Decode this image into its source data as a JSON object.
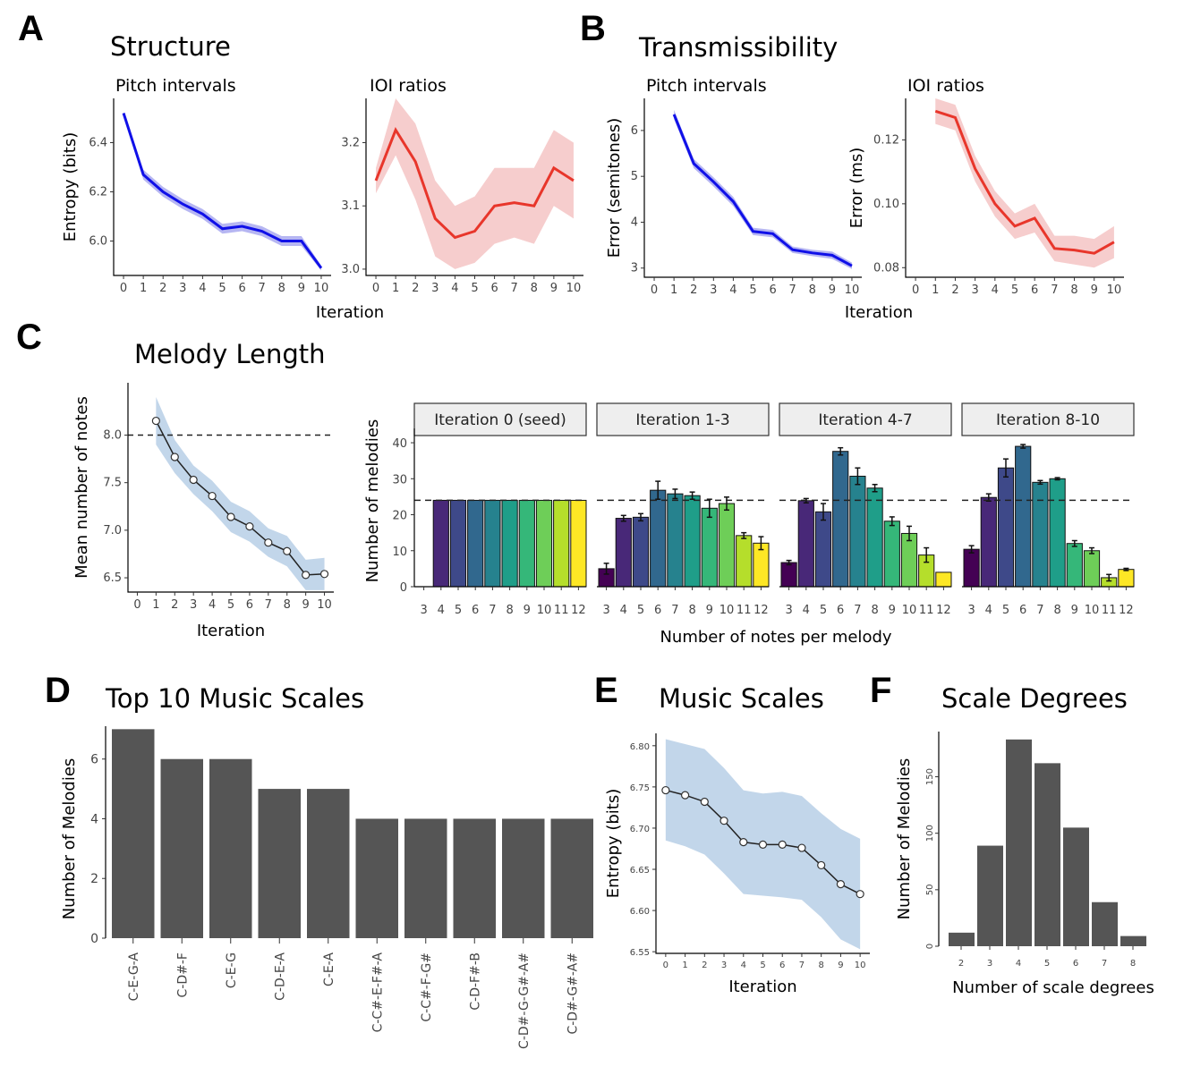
{
  "panels": {
    "A": {
      "label": "A",
      "title": "Structure"
    },
    "B": {
      "label": "B",
      "title": "Transmissibility"
    },
    "C": {
      "label": "C",
      "title": "Melody Length"
    },
    "D": {
      "label": "D",
      "title": "Top 10 Music Scales"
    },
    "E": {
      "label": "E",
      "title": "Music Scales"
    },
    "F": {
      "label": "F",
      "title": "Scale Degrees"
    }
  },
  "chart_data": [
    {
      "id": "A1",
      "type": "line",
      "panel": "A",
      "subtitle": "Pitch intervals",
      "ylabel": "Entropy (bits)",
      "xlabel": "",
      "color": "#1010e8",
      "band_color": "#a9a9f0",
      "x": [
        0,
        1,
        2,
        3,
        4,
        5,
        6,
        7,
        8,
        9,
        10
      ],
      "values": [
        6.52,
        6.27,
        6.2,
        6.15,
        6.11,
        6.05,
        6.06,
        6.04,
        6.0,
        6.0,
        5.89
      ],
      "lower": [
        6.52,
        6.25,
        6.18,
        6.13,
        6.09,
        6.03,
        6.04,
        6.02,
        5.98,
        5.98,
        5.88
      ],
      "upper": [
        6.52,
        6.29,
        6.22,
        6.17,
        6.13,
        6.07,
        6.08,
        6.06,
        6.02,
        6.02,
        5.9
      ],
      "ylim": [
        5.86,
        6.58
      ],
      "yticks": [
        6.0,
        6.2,
        6.4
      ],
      "yticklabels": [
        "6.0",
        "6.2",
        "6.4"
      ],
      "xticks": [
        0,
        1,
        2,
        3,
        4,
        5,
        6,
        7,
        8,
        9,
        10
      ]
    },
    {
      "id": "A2",
      "type": "line",
      "panel": "A",
      "subtitle": "IOI ratios",
      "ylabel": "",
      "xlabel": "",
      "color": "#e8362b",
      "band_color": "#f5c4c4",
      "x": [
        0,
        1,
        2,
        3,
        4,
        5,
        6,
        7,
        8,
        9,
        10
      ],
      "values": [
        3.14,
        3.22,
        3.17,
        3.08,
        3.05,
        3.06,
        3.1,
        3.105,
        3.1,
        3.16,
        3.14
      ],
      "lower": [
        3.12,
        3.18,
        3.11,
        3.02,
        3.0,
        3.01,
        3.04,
        3.05,
        3.04,
        3.1,
        3.08
      ],
      "upper": [
        3.16,
        3.27,
        3.23,
        3.14,
        3.1,
        3.115,
        3.16,
        3.16,
        3.16,
        3.22,
        3.2
      ],
      "ylim": [
        2.99,
        3.27
      ],
      "yticks": [
        3.0,
        3.1,
        3.2
      ],
      "yticklabels": [
        "3.0",
        "3.1",
        "3.2"
      ],
      "xticks": [
        0,
        1,
        2,
        3,
        4,
        5,
        6,
        7,
        8,
        9,
        10
      ]
    },
    {
      "id": "B1",
      "type": "line",
      "panel": "B",
      "subtitle": "Pitch intervals",
      "ylabel": "Error (semitones)",
      "xlabel": "",
      "color": "#1010e8",
      "band_color": "#a9a9f0",
      "x": [
        1,
        2,
        3,
        4,
        5,
        6,
        7,
        8,
        9,
        10
      ],
      "values": [
        6.35,
        5.28,
        4.88,
        4.45,
        3.8,
        3.75,
        3.4,
        3.33,
        3.28,
        3.05
      ],
      "lower": [
        6.25,
        5.18,
        4.78,
        4.35,
        3.72,
        3.67,
        3.33,
        3.26,
        3.2,
        2.98
      ],
      "upper": [
        6.45,
        5.38,
        4.98,
        4.55,
        3.88,
        3.83,
        3.47,
        3.4,
        3.36,
        3.12
      ],
      "ylim": [
        2.8,
        6.7
      ],
      "yticks": [
        3,
        4,
        5,
        6
      ],
      "yticklabels": [
        "3",
        "4",
        "5",
        "6"
      ],
      "xticks": [
        0,
        1,
        2,
        3,
        4,
        5,
        6,
        7,
        8,
        9,
        10
      ]
    },
    {
      "id": "B2",
      "type": "line",
      "panel": "B",
      "subtitle": "IOI ratios",
      "ylabel": "Error (ms)",
      "xlabel": "",
      "color": "#e8362b",
      "band_color": "#f5c4c4",
      "x": [
        1,
        2,
        3,
        4,
        5,
        6,
        7,
        8,
        9,
        10
      ],
      "values": [
        0.129,
        0.127,
        0.111,
        0.1,
        0.093,
        0.0955,
        0.086,
        0.0855,
        0.0845,
        0.088
      ],
      "lower": [
        0.125,
        0.123,
        0.107,
        0.096,
        0.089,
        0.091,
        0.082,
        0.081,
        0.08,
        0.083
      ],
      "upper": [
        0.133,
        0.131,
        0.115,
        0.104,
        0.097,
        0.1,
        0.09,
        0.09,
        0.089,
        0.093
      ],
      "ylim": [
        0.077,
        0.133
      ],
      "yticks": [
        0.08,
        0.1,
        0.12
      ],
      "yticklabels": [
        "0.08",
        "0.10",
        "0.12"
      ],
      "xticks": [
        0,
        1,
        2,
        3,
        4,
        5,
        6,
        7,
        8,
        9,
        10
      ]
    },
    {
      "id": "C1",
      "type": "line",
      "panel": "C",
      "subtitle": "",
      "ylabel": "Mean number of notes",
      "xlabel": "Iteration",
      "color": "#222222",
      "band_color": "#b7cfe6",
      "x": [
        1,
        2,
        3,
        4,
        5,
        6,
        7,
        8,
        9,
        10
      ],
      "values": [
        8.15,
        7.77,
        7.53,
        7.36,
        7.14,
        7.04,
        6.87,
        6.78,
        6.53,
        6.54
      ],
      "lower": [
        7.9,
        7.6,
        7.38,
        7.2,
        6.98,
        6.88,
        6.72,
        6.62,
        6.37,
        6.37
      ],
      "upper": [
        8.4,
        7.95,
        7.68,
        7.52,
        7.3,
        7.2,
        7.02,
        6.94,
        6.69,
        6.71
      ],
      "reference_line": 8.0,
      "ylim": [
        6.35,
        8.55
      ],
      "yticks": [
        6.5,
        7.0,
        7.5,
        8.0
      ],
      "yticklabels": [
        "6.5",
        "7.0",
        "7.5",
        "8.0"
      ],
      "xticks": [
        0,
        1,
        2,
        3,
        4,
        5,
        6,
        7,
        8,
        9,
        10
      ]
    },
    {
      "id": "C2",
      "type": "bar",
      "panel": "C",
      "ylabel": "Number of melodies",
      "xlabel": "Number of notes per melody",
      "categories": [
        "3",
        "4",
        "5",
        "6",
        "7",
        "8",
        "9",
        "10",
        "11",
        "12"
      ],
      "reference_line": 24,
      "ylim": [
        0,
        42
      ],
      "yticks": [
        0,
        10,
        20,
        30,
        40
      ],
      "yticklabels": [
        "0",
        "10",
        "20",
        "30",
        "40"
      ],
      "colors": [
        "#440154",
        "#482878",
        "#3e4989",
        "#31688e",
        "#26828e",
        "#1f9e89",
        "#35b779",
        "#6ece58",
        "#b5de2b",
        "#fde725"
      ],
      "facets": [
        {
          "title": "Iteration 0 (seed)",
          "values": [
            0,
            24,
            24,
            24,
            24,
            24,
            24,
            24,
            24,
            24
          ],
          "errors": [
            0,
            0,
            0,
            0,
            0,
            0,
            0,
            0,
            0,
            0
          ]
        },
        {
          "title": "Iteration 1-3",
          "values": [
            5,
            19,
            19.3,
            26.8,
            25.8,
            25.3,
            21.8,
            23.1,
            14.2,
            12.1
          ],
          "errors": [
            1.5,
            0.8,
            1,
            2.5,
            1.3,
            1,
            2.5,
            1.8,
            0.8,
            1.8
          ]
        },
        {
          "title": "Iteration 4-7",
          "values": [
            6.7,
            23.9,
            20.8,
            37.6,
            30.7,
            27.4,
            18.2,
            14.8,
            8.8,
            4
          ],
          "errors": [
            0.6,
            0.6,
            2.3,
            1,
            2.3,
            1,
            1.2,
            2,
            2,
            0
          ]
        },
        {
          "title": "Iteration 8-10",
          "values": [
            10.4,
            24.8,
            33,
            39,
            29,
            30,
            12,
            10,
            2.5,
            4.8
          ],
          "errors": [
            1,
            1,
            2.5,
            0.5,
            0.5,
            0.3,
            0.8,
            0.8,
            0.9,
            0.3
          ]
        }
      ]
    },
    {
      "id": "D",
      "type": "bar",
      "panel": "D",
      "ylabel": "Number of Melodies",
      "xlabel": "",
      "color": "#555555",
      "categories": [
        "C-E-G-A",
        "C-D#-F",
        "C-E-G",
        "C-D-E-A",
        "C-E-A",
        "C-C#-E-F#-A",
        "C-C#-F-G#",
        "C-D-F#-B",
        "C-D#-G-G#-A#",
        "C-D#-G#-A#"
      ],
      "values": [
        7,
        6,
        6,
        5,
        5,
        4,
        4,
        4,
        4,
        4
      ],
      "ylim": [
        0,
        7.1
      ],
      "yticks": [
        0,
        2,
        4,
        6
      ],
      "yticklabels": [
        "0",
        "2",
        "4",
        "6"
      ]
    },
    {
      "id": "E",
      "type": "line",
      "panel": "E",
      "ylabel": "Entropy (bits)",
      "xlabel": "Iteration",
      "color": "#222222",
      "band_color": "#b7cfe6",
      "x": [
        0,
        1,
        2,
        3,
        4,
        5,
        6,
        7,
        8,
        9,
        10
      ],
      "values": [
        6.746,
        6.74,
        6.732,
        6.709,
        6.683,
        6.68,
        6.68,
        6.676,
        6.655,
        6.632,
        6.62
      ],
      "lower": [
        6.685,
        6.678,
        6.668,
        6.645,
        6.62,
        6.618,
        6.616,
        6.613,
        6.592,
        6.565,
        6.553
      ],
      "upper": [
        6.808,
        6.802,
        6.796,
        6.773,
        6.746,
        6.742,
        6.744,
        6.739,
        6.718,
        6.699,
        6.687
      ],
      "ylim": [
        6.548,
        6.815
      ],
      "yticks": [
        6.55,
        6.6,
        6.65,
        6.7,
        6.75,
        6.8
      ],
      "yticklabels": [
        "6.55",
        "6.60",
        "6.65",
        "6.70",
        "6.75",
        "6.80"
      ],
      "xticks": [
        0,
        1,
        2,
        3,
        4,
        5,
        6,
        7,
        8,
        9,
        10
      ]
    },
    {
      "id": "F",
      "type": "bar",
      "panel": "F",
      "ylabel": "Number of Melodies",
      "xlabel": "Number of scale degrees",
      "color": "#555555",
      "categories": [
        "2",
        "3",
        "4",
        "5",
        "6",
        "7",
        "8"
      ],
      "values": [
        12,
        89,
        183,
        162,
        105,
        39,
        9
      ],
      "ylim": [
        0,
        190
      ],
      "yticks": [
        0,
        50,
        100,
        150
      ],
      "yticklabels": [
        "0",
        "50",
        "100",
        "150"
      ]
    }
  ],
  "shared_labels": {
    "iteration_A": "Iteration",
    "iteration_B": "Iteration"
  }
}
